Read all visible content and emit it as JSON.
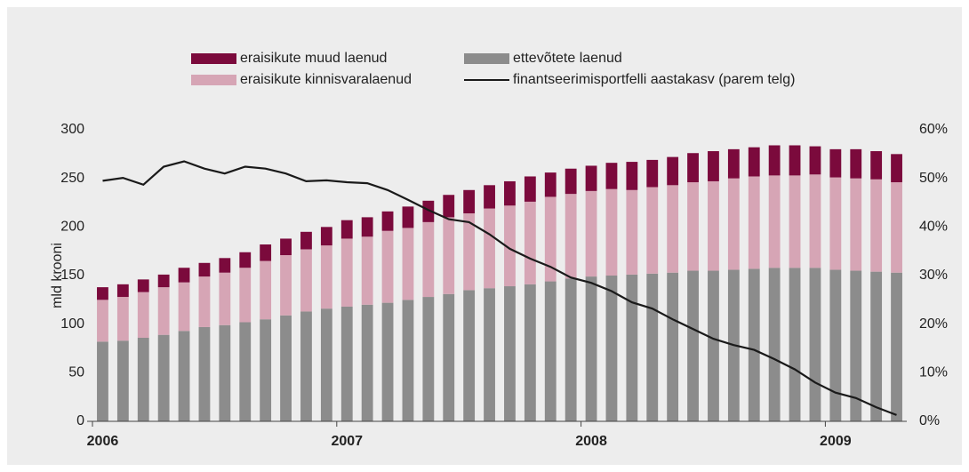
{
  "chart_data": {
    "type": "bar",
    "stacked": true,
    "ylabel": "mld krooni",
    "categories": [
      "2006",
      null,
      null,
      null,
      null,
      null,
      null,
      null,
      null,
      null,
      null,
      null,
      "2007",
      null,
      null,
      null,
      null,
      null,
      null,
      null,
      null,
      null,
      null,
      null,
      "2008",
      null,
      null,
      null,
      null,
      null,
      null,
      null,
      null,
      null,
      null,
      null,
      "2009",
      null,
      null,
      null
    ],
    "ylim": [
      0,
      300
    ],
    "yticks": [
      0,
      50,
      100,
      150,
      200,
      250,
      300
    ],
    "y2lim": [
      0,
      60
    ],
    "y2ticks": [
      {
        "value": 0,
        "label": "0%"
      },
      {
        "value": 10,
        "label": "10%"
      },
      {
        "value": 20,
        "label": "20%"
      },
      {
        "value": 30,
        "label": "30%"
      },
      {
        "value": 40,
        "label": "40%"
      },
      {
        "value": 50,
        "label": "50%"
      },
      {
        "value": 60,
        "label": "60%"
      }
    ],
    "series": [
      {
        "name": "eraisikute muud laenud",
        "color": "#7b0a3c",
        "values": [
          13,
          13,
          13,
          13,
          15,
          14,
          15,
          16,
          17,
          17,
          18,
          19,
          19,
          20,
          20,
          22,
          22,
          23,
          24,
          24,
          25,
          26,
          25,
          26,
          26,
          27,
          29,
          28,
          29,
          30,
          31,
          30,
          30,
          31,
          31,
          29,
          29,
          30,
          29,
          29
        ]
      },
      {
        "name": "eraisikute kinnisvaralaenud",
        "color": "#d6a5b5",
        "values": [
          43,
          45,
          47,
          49,
          50,
          52,
          54,
          56,
          60,
          62,
          64,
          65,
          70,
          70,
          74,
          74,
          77,
          79,
          79,
          82,
          83,
          85,
          87,
          87,
          88,
          89,
          87,
          89,
          90,
          91,
          92,
          94,
          95,
          95,
          95,
          96,
          95,
          95,
          95,
          93
        ]
      },
      {
        "name": "ettevõtete laenud",
        "color": "#8c8c8c",
        "values": [
          82,
          83,
          86,
          89,
          93,
          97,
          99,
          102,
          105,
          109,
          113,
          116,
          118,
          120,
          122,
          125,
          128,
          131,
          135,
          137,
          139,
          141,
          144,
          147,
          149,
          150,
          151,
          152,
          153,
          155,
          155,
          156,
          157,
          158,
          158,
          158,
          156,
          155,
          154,
          153
        ]
      },
      {
        "name": "finantseerimisportfelli aastakasv (parem telg)",
        "color": "#1a1a1a",
        "type": "line",
        "axis": "y2",
        "values": [
          49.5,
          50.1,
          48.7,
          52.4,
          53.5,
          52,
          51,
          52.4,
          52,
          51,
          49.4,
          49.6,
          49.2,
          49,
          47.6,
          45.6,
          43.5,
          41.6,
          41,
          38.5,
          35.5,
          33.5,
          31.8,
          29.6,
          28.5,
          26.8,
          24.5,
          23.2,
          21,
          19,
          17,
          15.7,
          14.7,
          12.8,
          10.7,
          8,
          5.9,
          4.8,
          2.9,
          1.3
        ]
      }
    ]
  }
}
